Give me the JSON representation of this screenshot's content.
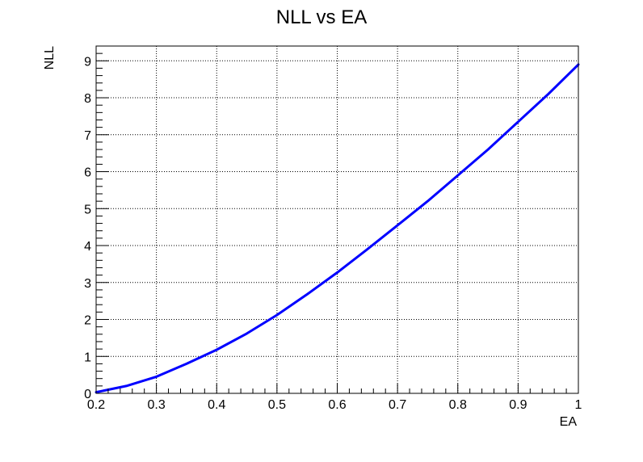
{
  "chart_data": {
    "type": "line",
    "title": "NLL vs EA",
    "xlabel": "EA",
    "ylabel": "NLL",
    "xlim": [
      0.2,
      1.0
    ],
    "ylim": [
      0,
      9.4
    ],
    "grid": true,
    "x_ticks": [
      0.2,
      0.3,
      0.4,
      0.5,
      0.6,
      0.7,
      0.8,
      0.9,
      1.0
    ],
    "x_tick_labels": [
      "0.2",
      "0.3",
      "0.4",
      "0.5",
      "0.6",
      "0.7",
      "0.8",
      "0.9",
      "1"
    ],
    "y_ticks": [
      0,
      1,
      2,
      3,
      4,
      5,
      6,
      7,
      8,
      9
    ],
    "y_tick_labels": [
      "0",
      "1",
      "2",
      "3",
      "4",
      "5",
      "6",
      "7",
      "8",
      "9"
    ],
    "series": [
      {
        "color": "#0000ff",
        "x": [
          0.2,
          0.25,
          0.3,
          0.35,
          0.4,
          0.45,
          0.5,
          0.55,
          0.6,
          0.65,
          0.7,
          0.75,
          0.8,
          0.85,
          0.9,
          0.95,
          1.0
        ],
        "y": [
          0.03,
          0.2,
          0.45,
          0.8,
          1.18,
          1.62,
          2.12,
          2.68,
          3.27,
          3.9,
          4.55,
          5.2,
          5.9,
          6.6,
          7.35,
          8.1,
          8.9
        ]
      }
    ]
  }
}
